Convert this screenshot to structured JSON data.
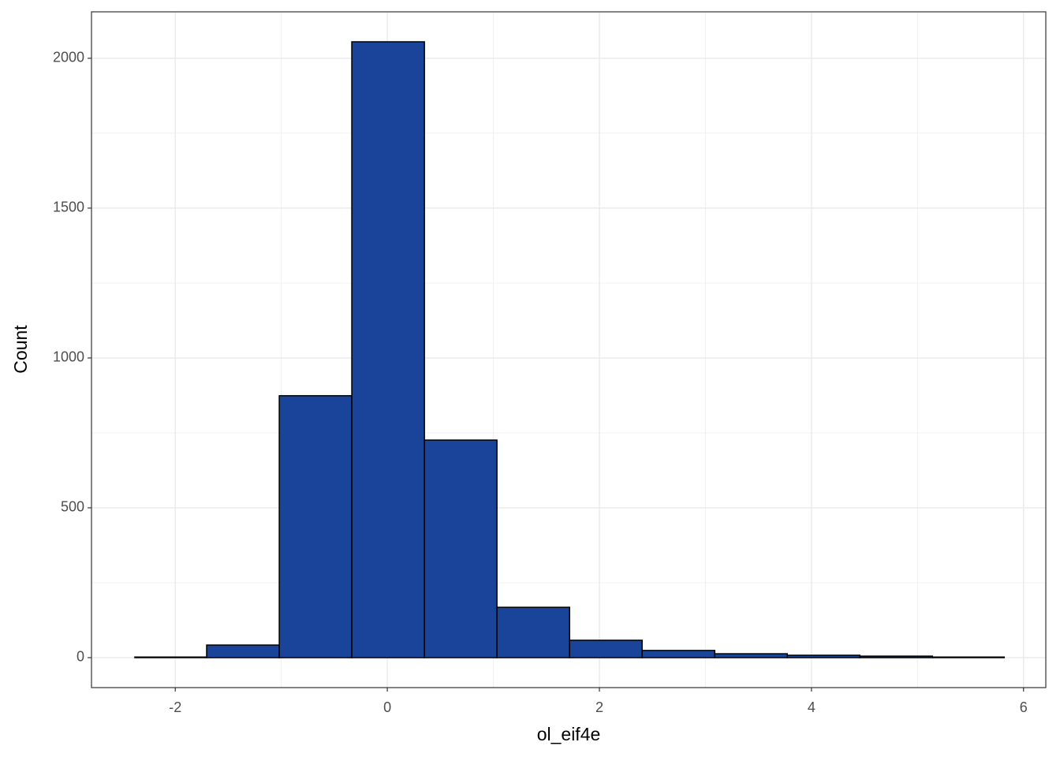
{
  "chart_data": {
    "type": "histogram",
    "x_label": "ol_eif4e",
    "y_label": "Count",
    "bins": [
      -2.381,
      -1.704,
      -1.019,
      -0.335,
      0.35,
      1.034,
      1.719,
      2.403,
      3.088,
      3.772,
      4.457,
      5.141,
      5.818
    ],
    "counts": [
      2,
      42,
      874,
      2055,
      726,
      168,
      58,
      24,
      13,
      8,
      5,
      2
    ],
    "color": "#1a4499",
    "xlim": [
      -2.79,
      6.21
    ],
    "xticks": [
      -2,
      0,
      2,
      4,
      6
    ],
    "ylim": [
      -100,
      2155
    ],
    "yticks": [
      0,
      500,
      1000,
      1500,
      2000
    ],
    "grid": true
  }
}
